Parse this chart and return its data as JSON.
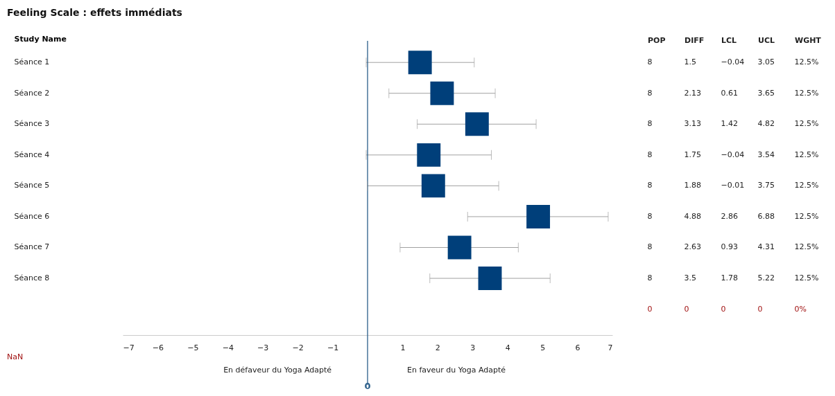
{
  "chart_data": [
    {
      "type": "scatter",
      "title": "Feeling Scale : effets immédiats",
      "ylabel": "Study Name",
      "categories": [
        "Séance 1",
        "Séance 2",
        "Séance 3",
        "Séance 4",
        "Séance 5",
        "Séance 6",
        "Séance 7",
        "Séance 8"
      ],
      "values": [
        1.5,
        2.13,
        3.13,
        1.75,
        1.88,
        4.88,
        2.63,
        3.5
      ],
      "errors": [
        [
          -0.04,
          3.05
        ],
        [
          0.61,
          3.65
        ],
        [
          1.42,
          4.82
        ],
        [
          -0.04,
          3.54
        ],
        [
          -0.01,
          3.75
        ],
        [
          2.86,
          6.88
        ],
        [
          0.93,
          4.31
        ],
        [
          1.78,
          5.22
        ]
      ],
      "color": "#003f7a",
      "marker": "square",
      "orientation": "horizontal",
      "xlim": [
        -7,
        7
      ],
      "xticks": [
        -7,
        -6,
        -5,
        -4,
        -3,
        -2,
        -1,
        1,
        2,
        3,
        4,
        5,
        6,
        7
      ],
      "grid": false,
      "ref_lines": [
        {
          "axis": "x",
          "value": 0,
          "label": "0",
          "color": "#2c5f8a"
        }
      ],
      "annotations": [
        "En défaveur du Yoga Adapté",
        "En faveur du Yoga Adapté",
        "NaN"
      ]
    },
    {
      "type": "other",
      "categories": [
        "POP",
        "DIFF",
        "LCL",
        "UCL",
        "WGHT"
      ],
      "cell_labels": [
        [
          "8",
          "1.5",
          "−0.04",
          "3.05",
          "12.5%"
        ],
        [
          "8",
          "2.13",
          "0.61",
          "3.65",
          "12.5%"
        ],
        [
          "8",
          "3.13",
          "1.42",
          "4.82",
          "12.5%"
        ],
        [
          "8",
          "1.75",
          "−0.04",
          "3.54",
          "12.5%"
        ],
        [
          "8",
          "1.88",
          "−0.01",
          "3.75",
          "12.5%"
        ],
        [
          "8",
          "4.88",
          "2.86",
          "6.88",
          "12.5%"
        ],
        [
          "8",
          "2.63",
          "0.93",
          "4.31",
          "12.5%"
        ],
        [
          "8",
          "3.5",
          "1.78",
          "5.22",
          "12.5%"
        ],
        [
          "0",
          "0",
          "0",
          "0",
          "0%"
        ]
      ],
      "colors": [
        "#222222",
        "#222222",
        "#222222",
        "#222222",
        "#222222",
        "#222222",
        "#222222",
        "#222222",
        "#a01010"
      ]
    }
  ]
}
